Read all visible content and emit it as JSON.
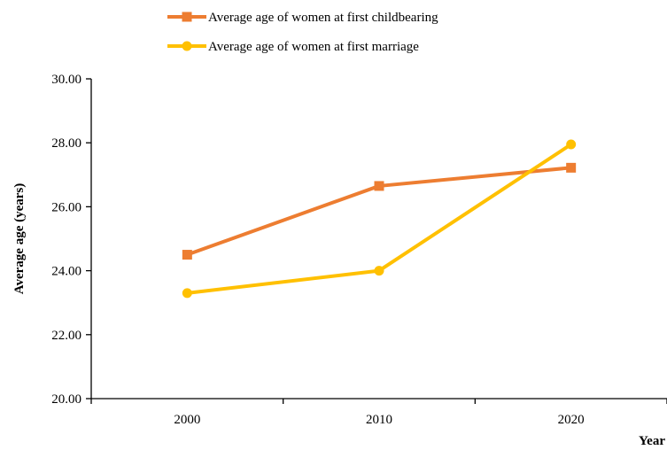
{
  "chart_data": {
    "type": "line",
    "categories": [
      "2000",
      "2010",
      "2020"
    ],
    "series": [
      {
        "name": "Average age of women at first childbearing",
        "values": [
          24.5,
          26.65,
          27.22
        ],
        "color": "#ED7D31",
        "marker": "square"
      },
      {
        "name": "Average age of women at first marriage",
        "values": [
          23.3,
          24.0,
          27.95
        ],
        "color": "#FFC000",
        "marker": "circle"
      }
    ],
    "xlabel": "Year",
    "ylabel": "Average age (years)",
    "ylim": [
      20,
      30
    ],
    "yticks": [
      "20.00",
      "22.00",
      "24.00",
      "26.00",
      "28.00",
      "30.00"
    ],
    "grid": false,
    "legend_position": "top"
  }
}
